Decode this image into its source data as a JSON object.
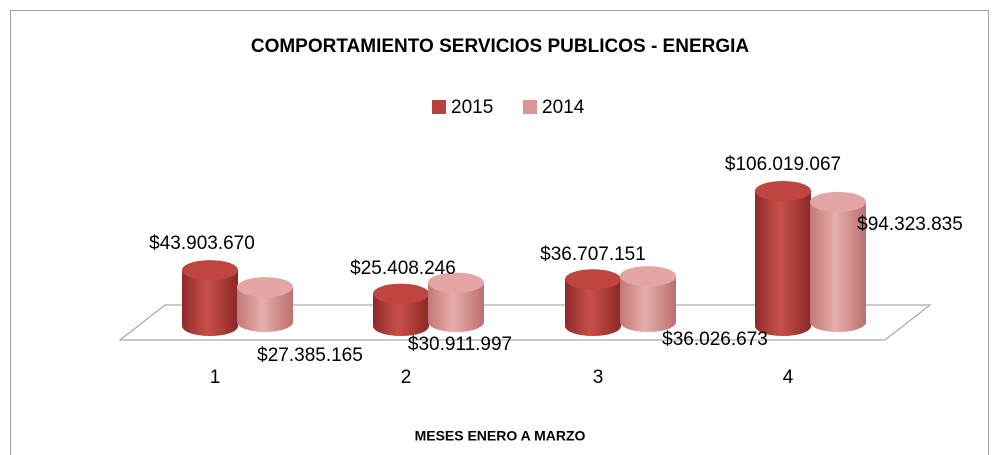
{
  "chart_data": {
    "type": "bar3d",
    "title": "COMPORTAMIENTO SERVICIOS PUBLICOS - ENERGIA",
    "x_label": "MESES ENERO A MARZO",
    "categories": [
      "1",
      "2",
      "3",
      "4"
    ],
    "series": [
      {
        "name": "2015",
        "color": "#b8413e",
        "values": [
          43903670,
          25408246,
          36707151,
          106019067
        ],
        "value_labels": [
          "$43.903.670",
          "$25.408.246",
          "$36.707.151",
          "$106.019.067"
        ]
      },
      {
        "name": "2014",
        "color": "#d99694",
        "values": [
          27385165,
          30911997,
          36026673,
          94323835
        ],
        "value_labels": [
          "$27.385.165",
          "$30.911.997",
          "$36.026.673",
          "$94.323.835"
        ]
      }
    ],
    "legend": "top"
  }
}
